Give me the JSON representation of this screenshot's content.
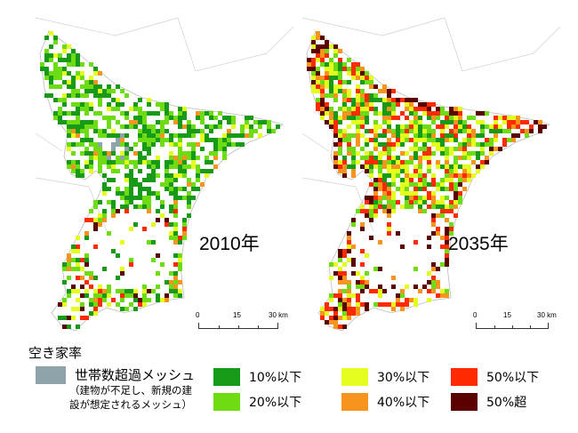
{
  "maps": [
    {
      "year_label": "2010年",
      "scale": {
        "ticks": [
          "0",
          "15",
          "30 km"
        ]
      }
    },
    {
      "year_label": "2035年",
      "scale": {
        "ticks": [
          "0",
          "15",
          "30 km"
        ]
      }
    }
  ],
  "legend": {
    "title": "空き家率",
    "items": [
      {
        "label": "世帯数超過メッシュ",
        "color": "#8fa3ab"
      },
      {
        "label": "10%以下",
        "color": "#179a17"
      },
      {
        "label": "20%以下",
        "color": "#6ddc12"
      },
      {
        "label": "30%以下",
        "color": "#e4ff1e"
      },
      {
        "label": "40%以下",
        "color": "#f7941d"
      },
      {
        "label": "50%以下",
        "color": "#ff2a00"
      },
      {
        "label": "50%超",
        "color": "#5a0000"
      }
    ],
    "note_lines": [
      "（建物が不足し、新規の建",
      "設が想定されるメッシュ）"
    ]
  }
}
